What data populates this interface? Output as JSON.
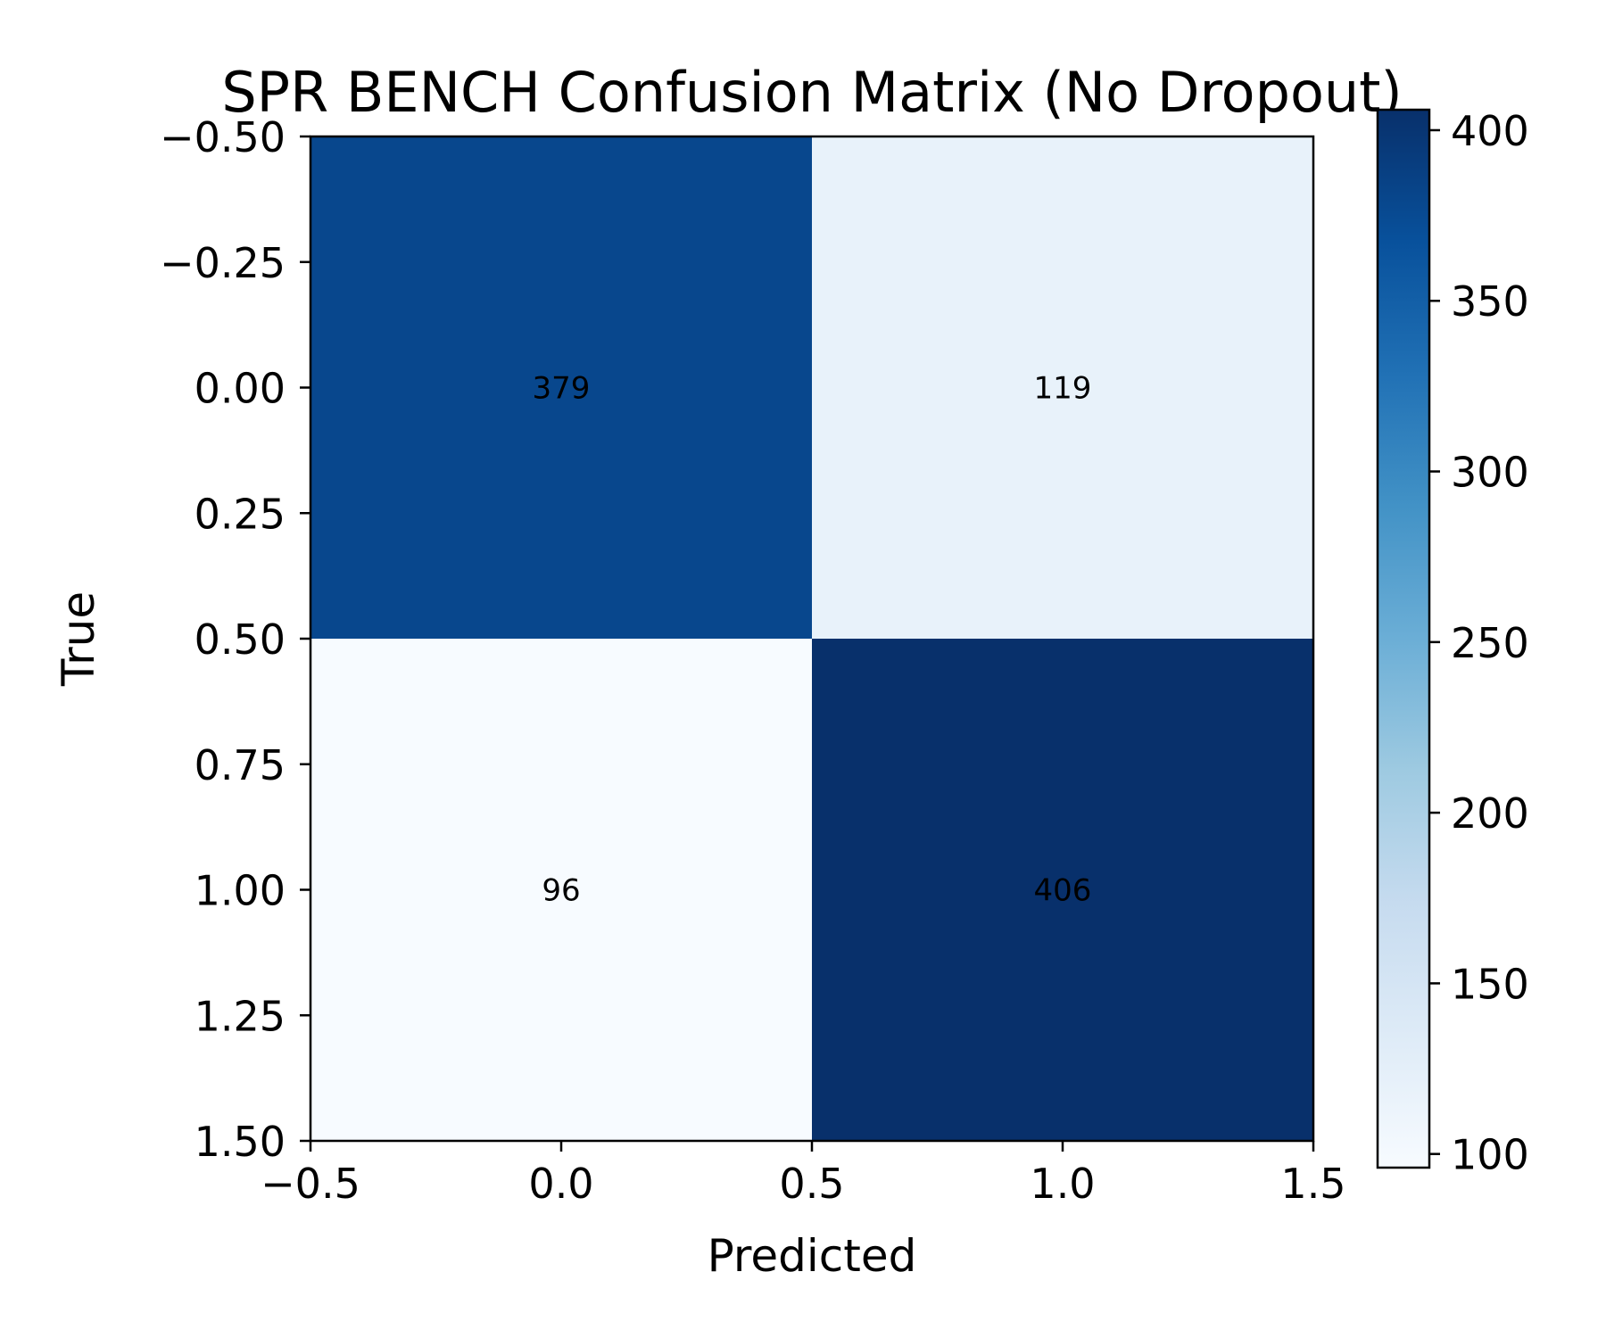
{
  "chart_data": {
    "type": "heatmap",
    "title": "SPR BENCH Confusion Matrix (No Dropout)",
    "xlabel": "Predicted",
    "ylabel": "True",
    "matrix": [
      [
        379,
        119
      ],
      [
        96,
        406
      ]
    ],
    "cell_labels": [
      [
        "379",
        "119"
      ],
      [
        "96",
        "406"
      ]
    ],
    "xlim": [
      -0.5,
      1.5
    ],
    "ylim": [
      1.5,
      -0.5
    ],
    "xticks": [
      -0.5,
      0.0,
      0.5,
      1.0,
      1.5
    ],
    "xtick_labels": [
      "−0.5",
      "0.0",
      "0.5",
      "1.0",
      "1.5"
    ],
    "yticks": [
      -0.5,
      -0.25,
      0.0,
      0.25,
      0.5,
      0.75,
      1.0,
      1.25,
      1.5
    ],
    "ytick_labels": [
      "−0.50",
      "−0.25",
      "0.00",
      "0.25",
      "0.50",
      "0.75",
      "1.00",
      "1.25",
      "1.50"
    ],
    "colormap": "Blues",
    "colorbar": {
      "range": [
        96,
        406
      ],
      "ticks": [
        100,
        150,
        200,
        250,
        300,
        350,
        400
      ],
      "tick_labels": [
        "100",
        "150",
        "200",
        "250",
        "300",
        "350",
        "400"
      ]
    },
    "grid": false
  }
}
